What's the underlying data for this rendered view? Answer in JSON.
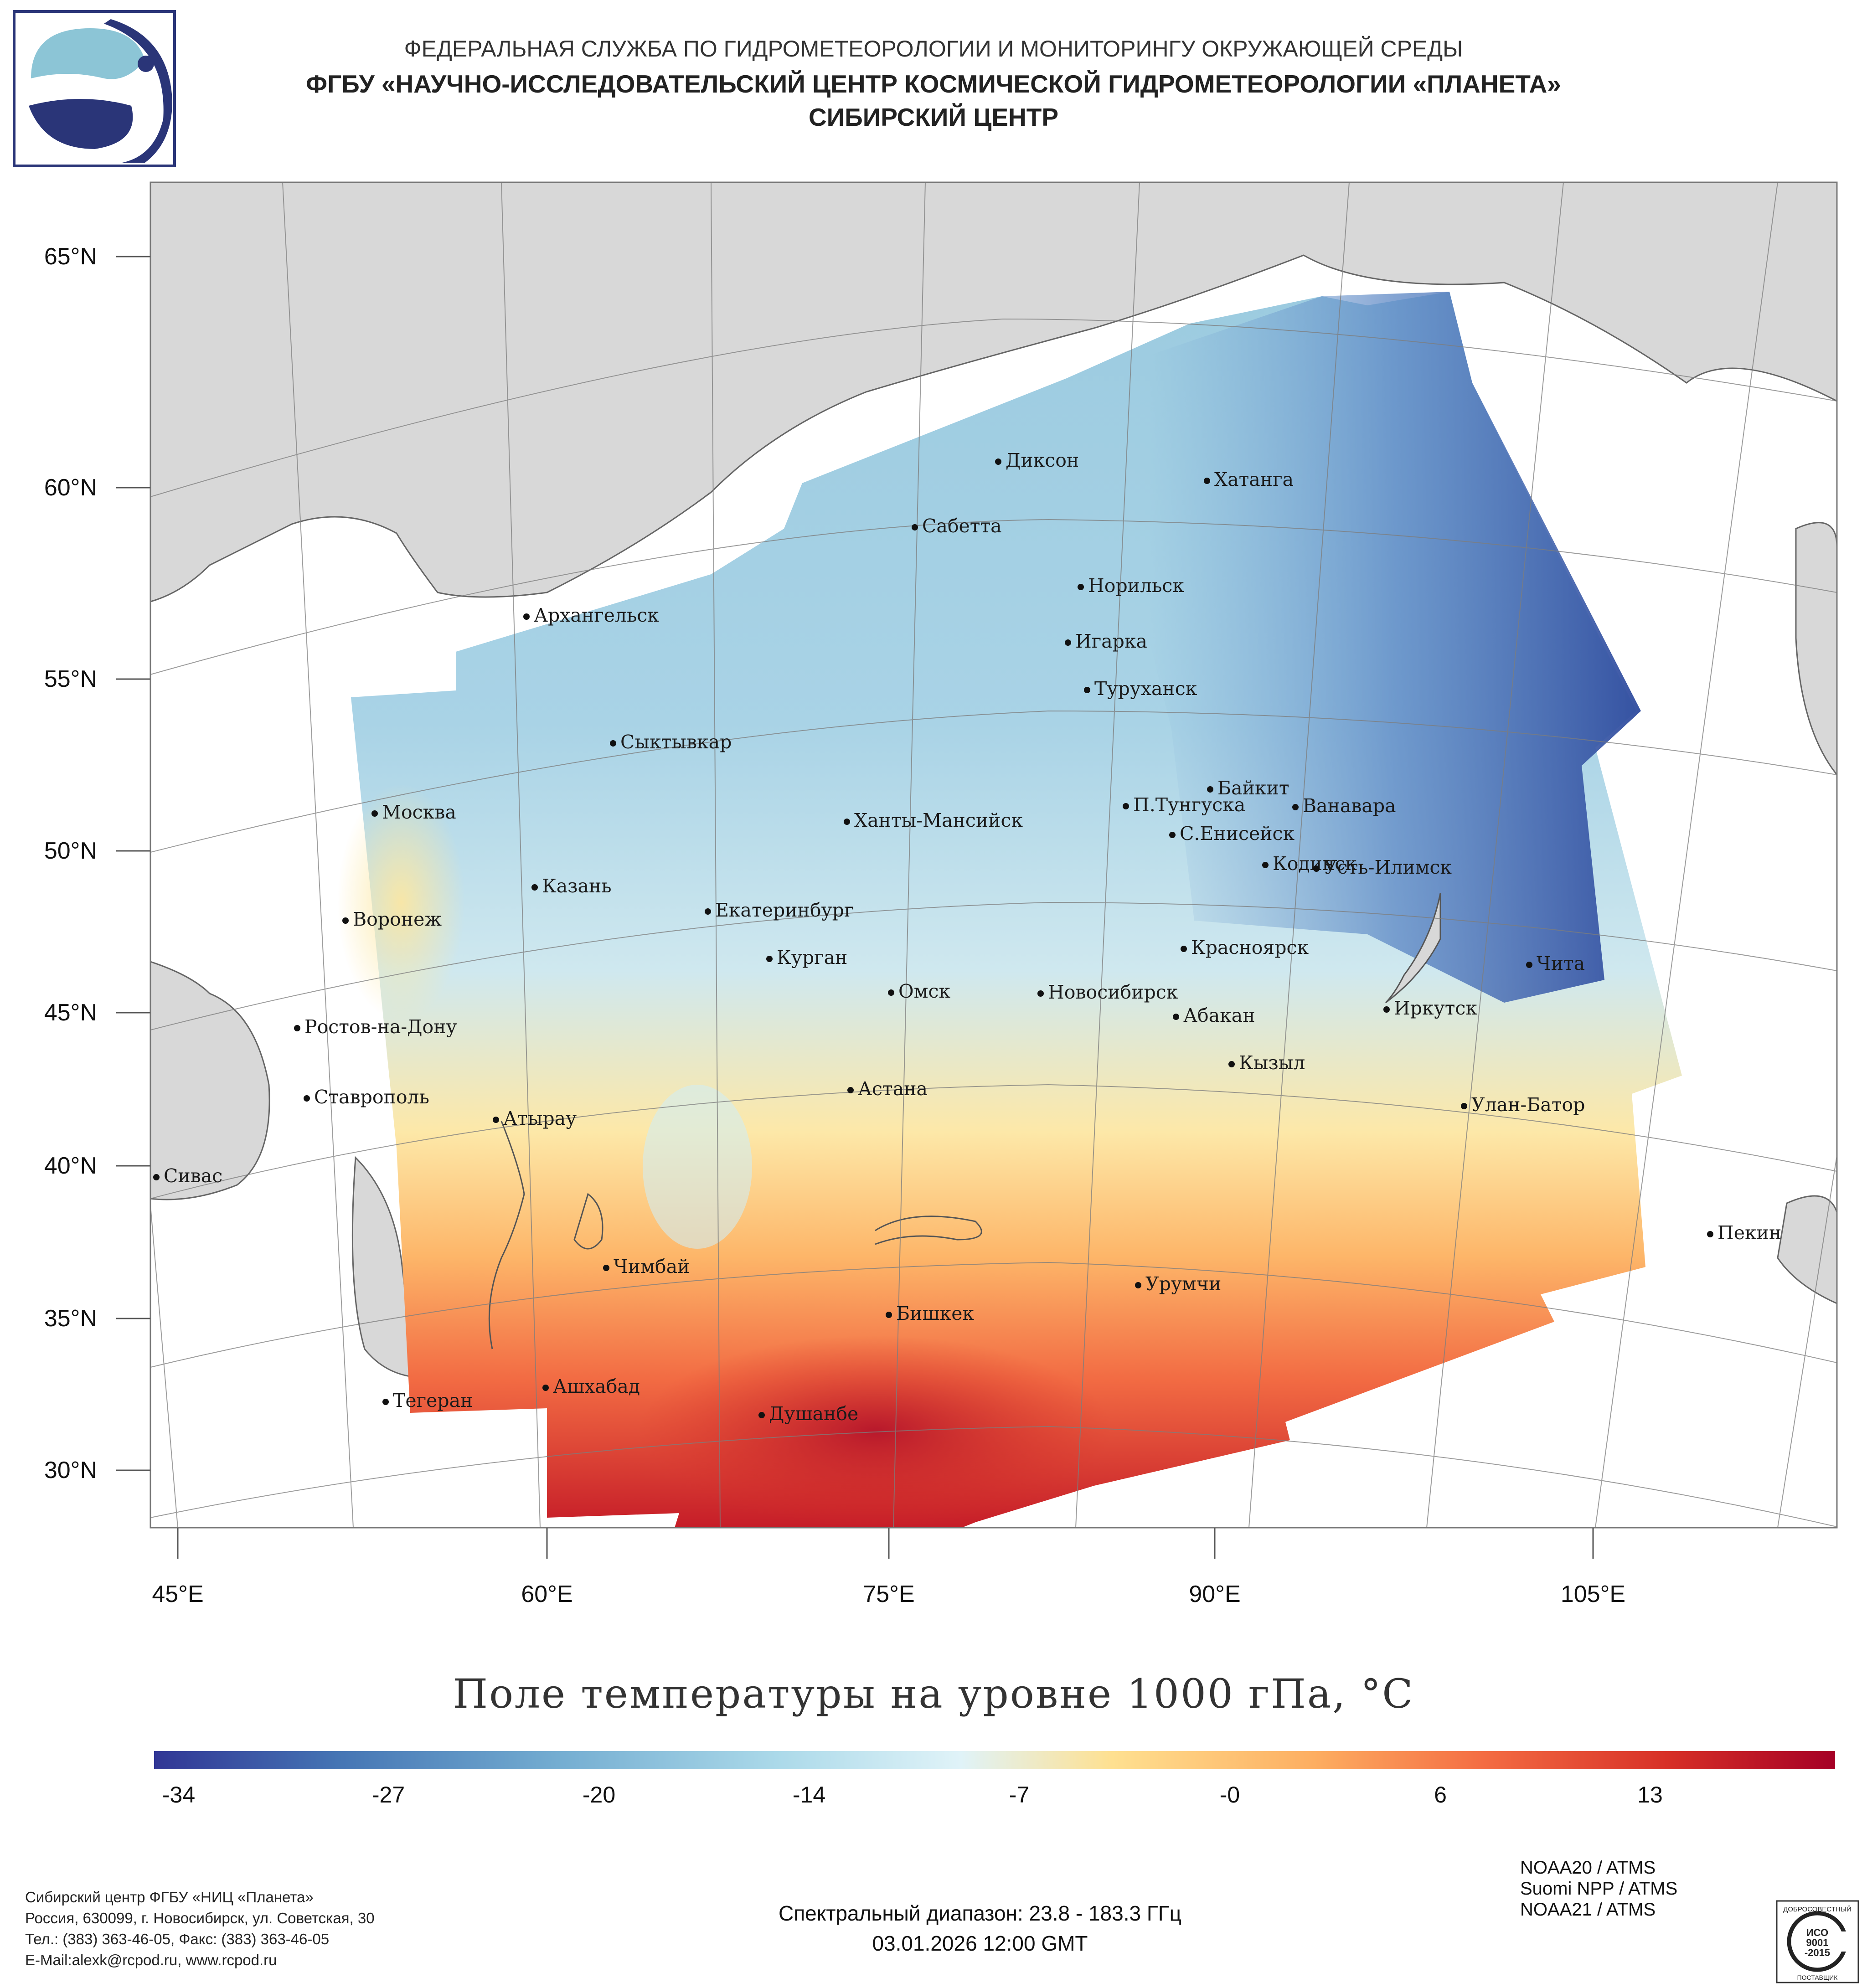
{
  "header": {
    "line1": "ФЕДЕРАЛЬНАЯ СЛУЖБА ПО ГИДРОМЕТЕОРОЛОГИИ И МОНИТОРИНГУ ОКРУЖАЮЩЕЙ СРЕДЫ",
    "line2": "ФГБУ «НАУЧНО-ИССЛЕДОВАТЕЛЬСКИЙ ЦЕНТР КОСМИЧЕСКОЙ ГИДРОМЕТЕОРОЛОГИИ «ПЛАНЕТА»",
    "line3": "СИБИРСКИЙ ЦЕНТР"
  },
  "map": {
    "lat_labels": [
      "65°N",
      "60°N",
      "55°N",
      "50°N",
      "45°N",
      "40°N",
      "35°N",
      "30°N"
    ],
    "lon_labels": [
      "45°E",
      "60°E",
      "75°E",
      "90°E",
      "105°E"
    ],
    "cities": [
      {
        "name": "Диксон",
        "lat": 73.5,
        "lon": 80.5
      },
      {
        "name": "Хатанга",
        "lat": 71.98,
        "lon": 102.5
      },
      {
        "name": "Сабетта",
        "lat": 71.27,
        "lon": 72.05
      },
      {
        "name": "Норильск",
        "lat": 69.35,
        "lon": 88.2
      },
      {
        "name": "Архангельск",
        "lat": 64.54,
        "lon": 40.52
      },
      {
        "name": "Игарка",
        "lat": 67.47,
        "lon": 86.57
      },
      {
        "name": "Туруханск",
        "lat": 65.8,
        "lon": 87.96
      },
      {
        "name": "Сыктывкар",
        "lat": 61.67,
        "lon": 50.81
      },
      {
        "name": "Байкит",
        "lat": 61.67,
        "lon": 96.37
      },
      {
        "name": "П.Тунгуска",
        "lat": 61.6,
        "lon": 90.1
      },
      {
        "name": "Ванавара",
        "lat": 60.34,
        "lon": 102.28
      },
      {
        "name": "Москва",
        "lat": 55.75,
        "lon": 37.62
      },
      {
        "name": "Ханты-Мансийск",
        "lat": 61.0,
        "lon": 69.0
      },
      {
        "name": "С.Енисейск",
        "lat": 58.45,
        "lon": 92.17
      },
      {
        "name": "Кодинск",
        "lat": 58.6,
        "lon": 99.18
      },
      {
        "name": "Усть-Илимск",
        "lat": 58.0,
        "lon": 102.66
      },
      {
        "name": "Казань",
        "lat": 55.79,
        "lon": 49.12
      },
      {
        "name": "Воронеж",
        "lat": 51.67,
        "lon": 39.18
      },
      {
        "name": "Екатеринбург",
        "lat": 56.84,
        "lon": 60.6
      },
      {
        "name": "Красноярск",
        "lat": 56.01,
        "lon": 92.87
      },
      {
        "name": "Курган",
        "lat": 55.44,
        "lon": 65.34
      },
      {
        "name": "Чита",
        "lat": 52.03,
        "lon": 113.5
      },
      {
        "name": "Омск",
        "lat": 54.99,
        "lon": 73.37
      },
      {
        "name": "Новосибирск",
        "lat": 55.03,
        "lon": 82.92
      },
      {
        "name": "Ростов-на-Дону",
        "lat": 47.23,
        "lon": 39.72
      },
      {
        "name": "Иркутск",
        "lat": 52.29,
        "lon": 104.28
      },
      {
        "name": "Абакан",
        "lat": 53.72,
        "lon": 91.43
      },
      {
        "name": "Кызыл",
        "lat": 51.72,
        "lon": 94.45
      },
      {
        "name": "Ставрополь",
        "lat": 45.04,
        "lon": 41.97
      },
      {
        "name": "Астана",
        "lat": 51.17,
        "lon": 71.43
      },
      {
        "name": "Атырау",
        "lat": 47.1,
        "lon": 51.9
      },
      {
        "name": "Улан-Батор",
        "lat": 47.92,
        "lon": 106.92
      },
      {
        "name": "Сивас",
        "lat": 39.75,
        "lon": 37.02
      },
      {
        "name": "Пекин",
        "lat": 39.9,
        "lon": 116.4
      },
      {
        "name": "Чимбай",
        "lat": 42.94,
        "lon": 59.78
      },
      {
        "name": "Урумчи",
        "lat": 43.83,
        "lon": 87.62
      },
      {
        "name": "Бишкек",
        "lat": 42.87,
        "lon": 74.59
      },
      {
        "name": "Ашхабад",
        "lat": 37.95,
        "lon": 58.38
      },
      {
        "name": "Тегеран",
        "lat": 35.69,
        "lon": 51.39
      },
      {
        "name": "Душанбе",
        "lat": 38.56,
        "lon": 68.77
      }
    ]
  },
  "title": "Поле температуры на уровне 1000 гПа, °C",
  "colorbar": {
    "ticks": [
      "-34",
      "-27",
      "-20",
      "-14",
      "-7",
      "-0",
      "6",
      "13"
    ],
    "colors": [
      "#313695",
      "#4575b4",
      "#74add1",
      "#abd9e9",
      "#e0f3f8",
      "#fee090",
      "#fdae61",
      "#f46d43",
      "#d73027",
      "#a50026"
    ]
  },
  "footer": {
    "address": [
      "Сибирский центр ФГБУ «НИЦ «Планета»",
      "Россия, 630099, г. Новосибирск, ул. Советская, 30",
      "Тел.: (383) 363-46-05, Факс: (383) 363-46-05",
      "E-Mail:alexk@rcpod.ru, www.rcpod.ru"
    ],
    "spectral": "Спектральный диапазон: 23.8 - 183.3 ГГц",
    "datetime": "03.01.2026 12:00 GMT",
    "sensors": [
      "NOAA20 / ATMS",
      "Suomi NPP / ATMS",
      "NOAA21 / ATMS"
    ],
    "iso_top": "ДОБРОСОВЕСТНЫЙ",
    "iso_line1": "ИСО",
    "iso_line2": "9001",
    "iso_line3": "-2015",
    "iso_bottom": "ПОСТАВЩИК"
  }
}
